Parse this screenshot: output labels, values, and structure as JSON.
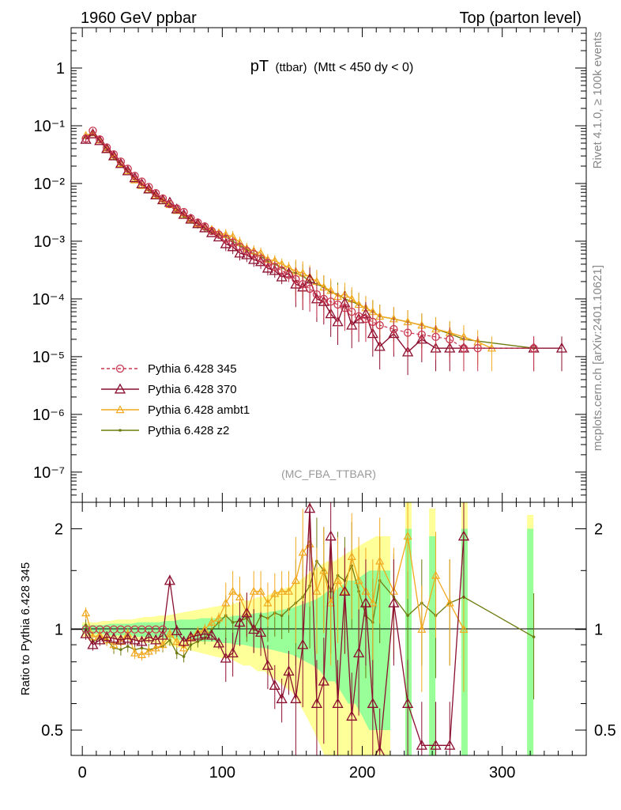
{
  "header": {
    "left": "1960 GeV ppbar",
    "right": "Top (parton level)"
  },
  "side_labels": {
    "rivet": "Rivet 4.1.0, ≥ 100k events",
    "mcplots": "mcplots.cern.ch [arXiv:2401.10621]"
  },
  "colors": {
    "p345": "#c8374f",
    "p370": "#8b0e2e",
    "ambt1": "#f2a81d",
    "z2": "#6e7a0f",
    "band_inner": "#99ff99",
    "band_outer": "#ffff99"
  },
  "chart_data": {
    "type": "line",
    "title_main": "pT",
    "title_sub": "(ttbar)",
    "title_cond": "(Mtt < 450 dy < 0)",
    "watermark": "(MC_FBA_TTBAR)",
    "xlim": [
      -8,
      360
    ],
    "x_ticks": [
      "0",
      "100",
      "200",
      "300"
    ],
    "x_tick_values": [
      0,
      100,
      200,
      300
    ],
    "main_panel": {
      "yscale": "log",
      "ylim": [
        3e-08,
        5
      ],
      "y_ticks": [
        "1",
        "10⁻¹",
        "10⁻²",
        "10⁻³",
        "10⁻⁴",
        "10⁻⁵",
        "10⁻⁶",
        "10⁻⁷"
      ],
      "y_tick_values": [
        1,
        0.1,
        0.01,
        0.001,
        0.0001,
        1e-05,
        1e-06,
        1e-07
      ]
    },
    "ratio_panel": {
      "ylabel": "Ratio to Pythia 6.428 345",
      "yscale": "log",
      "ylim": [
        0.42,
        2.4
      ],
      "y_ticks": [
        "0.5",
        "1",
        "2"
      ],
      "y_tick_values": [
        0.5,
        1,
        2
      ]
    },
    "legend": [
      {
        "key": "p345",
        "label": "Pythia 6.428 345"
      },
      {
        "key": "p370",
        "label": "Pythia 6.428 370"
      },
      {
        "key": "ambt1",
        "label": "Pythia 6.428 ambt1"
      },
      {
        "key": "z2",
        "label": "Pythia 6.428 z2"
      }
    ],
    "series": {
      "p345": {
        "name": "Pythia 6.428 345",
        "x": [
          2.5,
          7.5,
          12.5,
          17.5,
          22.5,
          27.5,
          32.5,
          37.5,
          42.5,
          47.5,
          52.5,
          57.5,
          62.5,
          67.5,
          72.5,
          77.5,
          82.5,
          87.5,
          92.5,
          97.5,
          102.5,
          107.5,
          112.5,
          117.5,
          122.5,
          127.5,
          132.5,
          137.5,
          142.5,
          147.5,
          152.5,
          157.5,
          162.5,
          167.5,
          172.5,
          177.5,
          182.5,
          187.5,
          192.5,
          197.5,
          202.5,
          207.5,
          212.5,
          222.5,
          232.5,
          242.5,
          252.5,
          262.5,
          272.5,
          282.5,
          322.5
        ],
        "y": [
          0.06,
          0.082,
          0.058,
          0.042,
          0.032,
          0.024,
          0.018,
          0.0135,
          0.0108,
          0.0087,
          0.0068,
          0.0055,
          0.0044,
          0.0037,
          0.0032,
          0.0025,
          0.0021,
          0.0018,
          0.0015,
          0.0013,
          0.0011,
          0.00095,
          0.0008,
          0.00068,
          0.0006,
          0.0005,
          0.00042,
          0.00036,
          0.00031,
          0.00026,
          0.00022,
          0.00018,
          0.00015,
          0.00012,
          0.0001,
          9e-05,
          8e-05,
          7e-05,
          6e-05,
          5e-05,
          4.5e-05,
          4e-05,
          3.5e-05,
          3e-05,
          2.6e-05,
          2.4e-05,
          2.2e-05,
          2e-05,
          1.4e-05,
          1.4e-05,
          1.4e-05
        ]
      },
      "p370": {
        "name": "Pythia 6.428 370",
        "x": [
          2.5,
          7.5,
          12.5,
          17.5,
          22.5,
          27.5,
          32.5,
          37.5,
          42.5,
          47.5,
          52.5,
          57.5,
          62.5,
          67.5,
          72.5,
          77.5,
          82.5,
          87.5,
          92.5,
          97.5,
          102.5,
          107.5,
          112.5,
          117.5,
          122.5,
          127.5,
          132.5,
          137.5,
          142.5,
          147.5,
          152.5,
          157.5,
          162.5,
          167.5,
          172.5,
          177.5,
          182.5,
          187.5,
          192.5,
          197.5,
          202.5,
          207.5,
          212.5,
          222.5,
          232.5,
          242.5,
          252.5,
          262.5,
          272.5,
          322.5,
          342.5
        ],
        "y": [
          0.058,
          0.072,
          0.055,
          0.04,
          0.03,
          0.022,
          0.0165,
          0.0125,
          0.0098,
          0.008,
          0.0063,
          0.0052,
          0.0047,
          0.0036,
          0.0029,
          0.0024,
          0.002,
          0.0017,
          0.0014,
          0.00118,
          0.0009,
          0.0008,
          0.00062,
          0.00058,
          0.00048,
          0.00044,
          0.00034,
          0.00031,
          0.00024,
          0.00028,
          0.00018,
          0.00016,
          0.00022,
          0.0001,
          9e-05,
          5.5e-05,
          4e-05,
          8.5e-05,
          3.5e-05,
          4.5e-05,
          5.5e-05,
          2.5e-05,
          1.5e-05,
          2.5e-05,
          1.2e-05,
          2e-05,
          1.4e-05,
          1.4e-05,
          1.4e-05,
          1.4e-05,
          1.4e-05
        ]
      },
      "ambt1": {
        "name": "Pythia 6.428 ambt1",
        "x": [
          2.5,
          7.5,
          12.5,
          17.5,
          22.5,
          27.5,
          32.5,
          37.5,
          42.5,
          47.5,
          52.5,
          57.5,
          62.5,
          67.5,
          72.5,
          77.5,
          82.5,
          87.5,
          92.5,
          97.5,
          102.5,
          107.5,
          112.5,
          117.5,
          122.5,
          127.5,
          132.5,
          137.5,
          142.5,
          147.5,
          152.5,
          157.5,
          162.5,
          167.5,
          172.5,
          177.5,
          182.5,
          187.5,
          192.5,
          197.5,
          202.5,
          207.5,
          212.5,
          222.5,
          232.5,
          242.5,
          252.5,
          262.5,
          272.5,
          282.5,
          292.5
        ],
        "y": [
          0.068,
          0.075,
          0.056,
          0.039,
          0.029,
          0.022,
          0.0165,
          0.0115,
          0.0092,
          0.0078,
          0.0062,
          0.005,
          0.0043,
          0.0034,
          0.0028,
          0.0024,
          0.002,
          0.0018,
          0.0016,
          0.0014,
          0.0013,
          0.0012,
          0.00095,
          0.00075,
          0.00068,
          0.00062,
          0.00048,
          0.00046,
          0.0004,
          0.00035,
          0.0003,
          0.00028,
          0.00024,
          0.0002,
          0.00016,
          0.00014,
          0.00011,
          0.00012,
          0.0001,
          8e-05,
          7e-05,
          6e-05,
          5e-05,
          4.5e-05,
          4e-05,
          3.5e-05,
          3e-05,
          2.6e-05,
          2.2e-05,
          1.8e-05,
          1.4e-05
        ]
      },
      "z2": {
        "name": "Pythia 6.428 z2",
        "x": [
          2.5,
          7.5,
          12.5,
          17.5,
          22.5,
          27.5,
          32.5,
          37.5,
          42.5,
          47.5,
          52.5,
          57.5,
          62.5,
          67.5,
          72.5,
          77.5,
          82.5,
          87.5,
          92.5,
          97.5,
          102.5,
          107.5,
          112.5,
          117.5,
          122.5,
          127.5,
          132.5,
          137.5,
          142.5,
          147.5,
          152.5,
          157.5,
          162.5,
          167.5,
          172.5,
          177.5,
          182.5,
          187.5,
          192.5,
          197.5,
          202.5,
          207.5,
          212.5,
          222.5,
          232.5,
          242.5,
          252.5,
          262.5,
          272.5,
          322.5
        ],
        "y": [
          0.062,
          0.075,
          0.055,
          0.039,
          0.028,
          0.021,
          0.016,
          0.0118,
          0.0095,
          0.0076,
          0.006,
          0.0049,
          0.0041,
          0.0033,
          0.0027,
          0.0022,
          0.0018,
          0.0016,
          0.0014,
          0.0013,
          0.0012,
          0.001,
          0.00085,
          0.00072,
          0.0006,
          0.00055,
          0.00045,
          0.0004,
          0.00035,
          0.0003,
          0.00028,
          0.00025,
          0.0002,
          0.00018,
          0.00016,
          0.00013,
          0.00012,
          0.0001,
          9e-05,
          8e-05,
          7e-05,
          6e-05,
          5e-05,
          4.5e-05,
          4e-05,
          3.5e-05,
          3e-05,
          2.5e-05,
          2e-05,
          1.4e-05
        ]
      }
    },
    "ratio_series": {
      "p370": {
        "x": [
          2.5,
          7.5,
          12.5,
          17.5,
          22.5,
          27.5,
          32.5,
          37.5,
          42.5,
          47.5,
          52.5,
          57.5,
          62.5,
          67.5,
          72.5,
          77.5,
          82.5,
          87.5,
          92.5,
          97.5,
          102.5,
          107.5,
          112.5,
          117.5,
          122.5,
          127.5,
          132.5,
          137.5,
          142.5,
          147.5,
          152.5,
          157.5,
          162.5,
          167.5,
          172.5,
          177.5,
          182.5,
          187.5,
          192.5,
          197.5,
          202.5,
          207.5,
          212.5,
          222.5,
          232.5,
          242.5,
          252.5,
          262.5,
          272.5
        ],
        "y": [
          0.97,
          0.9,
          0.93,
          0.95,
          0.94,
          0.93,
          0.94,
          0.93,
          0.92,
          0.95,
          0.93,
          0.96,
          1.4,
          0.99,
          0.92,
          0.95,
          0.96,
          0.97,
          0.96,
          0.91,
          0.82,
          0.85,
          1.05,
          1.12,
          1.0,
          0.98,
          0.78,
          0.68,
          0.62,
          0.75,
          0.62,
          0.9,
          2.3,
          0.6,
          0.7,
          1.9,
          0.6,
          1.3,
          0.55,
          0.85,
          1.2,
          0.6,
          0.43,
          1.2,
          0.6,
          0.45,
          0.45,
          0.45,
          1.9
        ]
      },
      "ambt1": {
        "x": [
          2.5,
          7.5,
          12.5,
          17.5,
          22.5,
          27.5,
          32.5,
          37.5,
          42.5,
          47.5,
          52.5,
          57.5,
          62.5,
          67.5,
          72.5,
          77.5,
          82.5,
          87.5,
          92.5,
          97.5,
          102.5,
          107.5,
          112.5,
          117.5,
          122.5,
          127.5,
          132.5,
          137.5,
          142.5,
          147.5,
          152.5,
          157.5,
          162.5,
          167.5,
          172.5,
          177.5,
          182.5,
          187.5,
          192.5,
          197.5,
          202.5,
          207.5,
          212.5,
          222.5,
          232.5,
          242.5,
          252.5,
          262.5,
          272.5
        ],
        "y": [
          1.12,
          0.95,
          0.96,
          0.93,
          0.9,
          0.92,
          0.97,
          0.85,
          0.84,
          0.86,
          0.88,
          0.9,
          0.97,
          0.92,
          0.88,
          0.95,
          0.98,
          1.0,
          1.05,
          1.08,
          1.2,
          1.3,
          1.25,
          1.12,
          1.3,
          1.3,
          1.2,
          1.28,
          1.3,
          1.3,
          1.4,
          1.7,
          1.8,
          1.3,
          1.5,
          1.2,
          1.4,
          1.3,
          1.65,
          1.4,
          1.3,
          1.2,
          1.6,
          1.3,
          1.9,
          1.0,
          1.45,
          1.2,
          1.0
        ]
      },
      "z2": {
        "x": [
          2.5,
          7.5,
          12.5,
          17.5,
          22.5,
          27.5,
          32.5,
          37.5,
          42.5,
          47.5,
          52.5,
          57.5,
          62.5,
          67.5,
          72.5,
          77.5,
          82.5,
          87.5,
          92.5,
          97.5,
          102.5,
          107.5,
          112.5,
          117.5,
          122.5,
          127.5,
          132.5,
          137.5,
          142.5,
          147.5,
          152.5,
          157.5,
          162.5,
          167.5,
          172.5,
          177.5,
          182.5,
          187.5,
          192.5,
          197.5,
          202.5,
          207.5,
          212.5,
          222.5,
          232.5,
          242.5,
          252.5,
          262.5,
          272.5,
          322.5
        ],
        "y": [
          1.03,
          0.92,
          0.94,
          0.93,
          0.88,
          0.87,
          0.89,
          0.87,
          0.88,
          0.87,
          0.88,
          0.89,
          0.93,
          0.85,
          0.83,
          0.9,
          0.92,
          0.94,
          1.0,
          1.05,
          1.1,
          1.05,
          1.06,
          1.08,
          1.0,
          1.1,
          1.08,
          1.12,
          1.1,
          1.15,
          1.2,
          1.25,
          1.35,
          1.6,
          1.5,
          1.3,
          1.45,
          1.4,
          1.55,
          1.3,
          1.1,
          1.05,
          1.4,
          1.25,
          1.1,
          1.2,
          1.1,
          1.2,
          1.25,
          0.95
        ]
      }
    },
    "band": {
      "x": [
        0,
        5,
        10,
        15,
        20,
        25,
        30,
        35,
        40,
        45,
        50,
        55,
        60,
        65,
        70,
        75,
        80,
        85,
        90,
        95,
        100,
        105,
        110,
        115,
        120,
        125,
        130,
        135,
        140,
        145,
        150,
        155,
        160,
        165,
        170,
        175,
        180,
        185,
        190,
        195,
        200,
        205,
        210,
        215,
        220
      ],
      "inner": [
        0.03,
        0.03,
        0.03,
        0.03,
        0.04,
        0.04,
        0.04,
        0.04,
        0.05,
        0.05,
        0.05,
        0.05,
        0.06,
        0.06,
        0.07,
        0.07,
        0.07,
        0.08,
        0.08,
        0.08,
        0.09,
        0.09,
        0.1,
        0.1,
        0.11,
        0.12,
        0.12,
        0.13,
        0.14,
        0.15,
        0.16,
        0.18,
        0.2,
        0.22,
        0.25,
        0.3,
        0.3,
        0.35,
        0.4,
        0.4,
        0.45,
        0.5,
        0.5,
        0.5,
        0.5
      ],
      "outer": [
        0.05,
        0.05,
        0.05,
        0.06,
        0.06,
        0.07,
        0.07,
        0.07,
        0.08,
        0.09,
        0.09,
        0.1,
        0.1,
        0.11,
        0.12,
        0.13,
        0.14,
        0.15,
        0.16,
        0.17,
        0.18,
        0.18,
        0.2,
        0.22,
        0.22,
        0.25,
        0.25,
        0.28,
        0.3,
        0.33,
        0.35,
        0.4,
        0.45,
        0.5,
        0.55,
        0.6,
        0.6,
        0.65,
        0.7,
        0.75,
        0.8,
        0.85,
        0.9,
        0.9,
        0.9
      ]
    },
    "band_spikes": [
      {
        "x": 233,
        "inner": 1.0,
        "outer": 1.4
      },
      {
        "x": 250,
        "inner": 0.9,
        "outer": 1.3
      },
      {
        "x": 273,
        "inner": 1.0,
        "outer": 1.4
      },
      {
        "x": 320,
        "inner": 1.0,
        "outer": 1.2
      }
    ]
  }
}
